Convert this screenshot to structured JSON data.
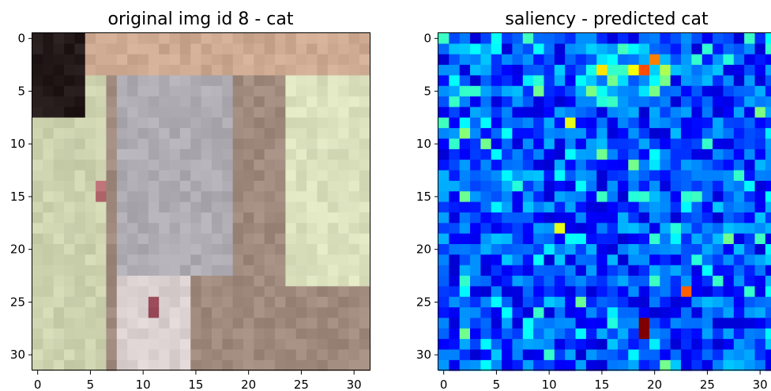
{
  "chart_data": [
    {
      "type": "heatmap",
      "title": "original img id 8 - cat",
      "xlabel": "",
      "ylabel": "",
      "grid_size": 32,
      "xlim": [
        -0.5,
        31.5
      ],
      "ylim": [
        31.5,
        -0.5
      ],
      "x_ticks": [
        0,
        5,
        10,
        15,
        20,
        25,
        30
      ],
      "y_ticks": [
        0,
        5,
        10,
        15,
        20,
        25,
        30
      ],
      "colormap": "rgb photo",
      "grid": false
    },
    {
      "type": "heatmap",
      "title": "saliency - predicted cat",
      "xlabel": "",
      "ylabel": "",
      "grid_size": 32,
      "xlim": [
        -0.5,
        31.5
      ],
      "ylim": [
        31.5,
        -0.5
      ],
      "x_ticks": [
        0,
        5,
        10,
        15,
        20,
        25,
        30
      ],
      "y_ticks": [
        0,
        5,
        10,
        15,
        20,
        25,
        30
      ],
      "colormap": "jet",
      "grid": false,
      "hot_cells": [
        {
          "x": 19,
          "y": 27,
          "value": 1.0
        },
        {
          "x": 19,
          "y": 28,
          "value": 1.0
        },
        {
          "x": 19,
          "y": 3,
          "value": 0.8
        },
        {
          "x": 20,
          "y": 2,
          "value": 0.75
        },
        {
          "x": 23,
          "y": 24,
          "value": 0.78
        },
        {
          "x": 15,
          "y": 3,
          "value": 0.65
        },
        {
          "x": 18,
          "y": 3,
          "value": 0.62
        },
        {
          "x": 12,
          "y": 8,
          "value": 0.6
        },
        {
          "x": 11,
          "y": 18,
          "value": 0.6
        }
      ]
    }
  ]
}
